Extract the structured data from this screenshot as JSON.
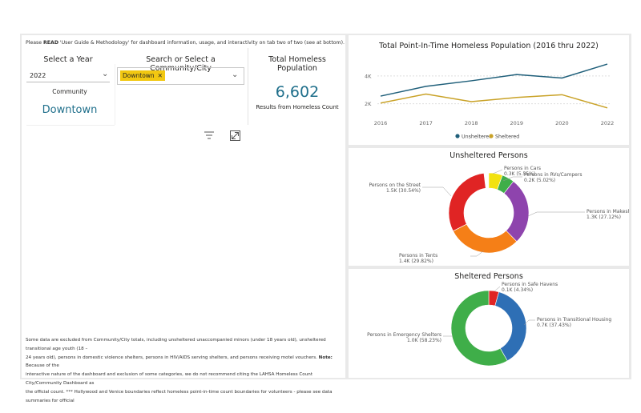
{
  "notice": {
    "prefix": "Please ",
    "bold": "READ",
    "rest": " 'User Guide & Methodology' for dashboard information, usage, and interactivity on tab two of two (see at bottom)."
  },
  "year_filter": {
    "label": "Select a Year",
    "value": "2022"
  },
  "city_filter": {
    "label": "Search or Select a Community/City",
    "chip": "Downtown"
  },
  "total_card": {
    "label": "Total Homeless Population",
    "value": "6,602",
    "subtitle": "Results from Homeless Count"
  },
  "community": {
    "label": "Community",
    "value": "Downtown"
  },
  "footnote": {
    "line1": "Some data are excluded from Community/City totals, including unsheltered unaccompanied minors (under 18 years old), unsheltered transitional age youth (18 –",
    "line2": "24 years old), persons in domestic violence shelters, persons in HIV/AIDS serving shelters, and persons receiving motel vouchers.",
    "note_bold": "Note:",
    "line2b": " Because of the",
    "line3": "interactive nature of the dashboard and exclusion of some categories, we do not recommend citing the LAHSA Homeless Count City/Community Dashboard as",
    "line4": "the official count. *** Hollywood and Venice boundaries reflect homeless point-in-time count boundaries for volunteers - please see data summaries for official"
  },
  "line_chart": {
    "title": "Total Point-In-Time Homeless Population (2016 thru 2022)",
    "y_ticks": [
      "4K",
      "2K"
    ],
    "x_ticks": [
      "2016",
      "2017",
      "2018",
      "2019",
      "2020",
      "2022"
    ],
    "legend": [
      {
        "name": "Unsheltered",
        "color": "#1f5f7a"
      },
      {
        "name": "Sheltered",
        "color": "#c9a227"
      }
    ]
  },
  "chart_data": [
    {
      "type": "line",
      "title": "Total Point-In-Time Homeless Population (2016 thru 2022)",
      "categories": [
        "2016",
        "2017",
        "2018",
        "2019",
        "2020",
        "2022"
      ],
      "ylim": [
        1000,
        5200
      ],
      "y_ticks": [
        4000,
        2000
      ],
      "series": [
        {
          "name": "Unsheltered",
          "color": "#1f5f7a",
          "values": [
            2550,
            3250,
            3650,
            4100,
            3850,
            4850
          ]
        },
        {
          "name": "Sheltered",
          "color": "#c9a227",
          "values": [
            2050,
            2700,
            2150,
            2450,
            2650,
            1700
          ]
        }
      ],
      "legend": "bottom"
    },
    {
      "type": "pie",
      "title": "Unsheltered Persons",
      "slices": [
        {
          "label": "Persons in Cars",
          "value_text": "0.3K (5.55%)",
          "pct": 5.55,
          "color": "#f2e20f"
        },
        {
          "label": "Persons in RVs/Campers",
          "value_text": "0.2K (5.02%)",
          "pct": 5.02,
          "color": "#3fae49"
        },
        {
          "label": "Persons in Makeshift Shelters",
          "value_text": "1.3K (27.12%)",
          "pct": 27.12,
          "color": "#8e44ad"
        },
        {
          "label": "Persons in Tents",
          "value_text": "1.4K (29.82%)",
          "pct": 29.82,
          "color": "#f57f17"
        },
        {
          "label": "Persons on the Street",
          "value_text": "1.5K (30.54%)",
          "pct": 30.54,
          "color": "#e02424"
        }
      ]
    },
    {
      "type": "pie",
      "title": "Sheltered Persons",
      "slices": [
        {
          "label": "Persons in Safe Havens",
          "value_text": "0.1K (4.34%)",
          "pct": 4.34,
          "color": "#e02424"
        },
        {
          "label": "Persons in Transitional Housing",
          "value_text": "0.7K (37.43%)",
          "pct": 37.43,
          "color": "#2e6fb5"
        },
        {
          "label": "Persons in Emergency Shelters",
          "value_text": "1.0K (58.23%)",
          "pct": 58.23,
          "color": "#3fae49"
        }
      ]
    }
  ]
}
